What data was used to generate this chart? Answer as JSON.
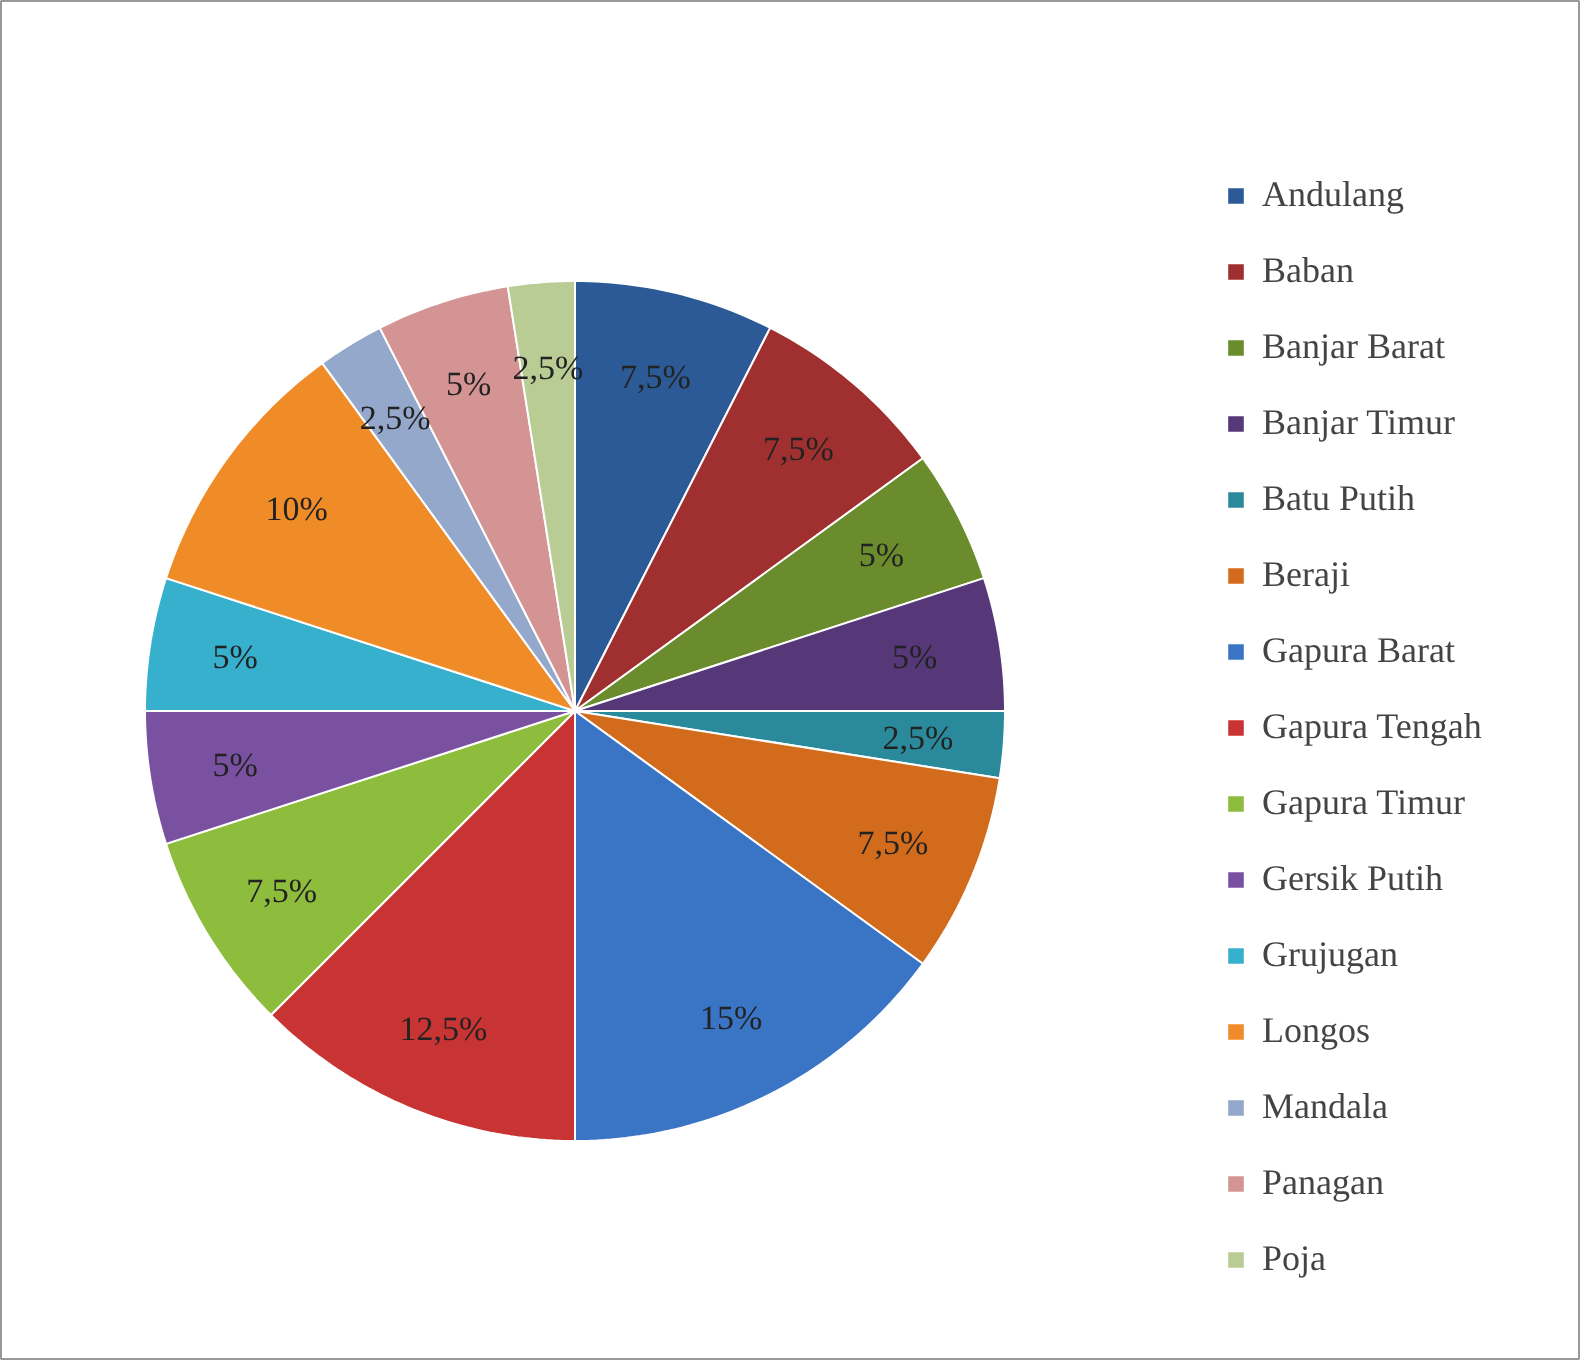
{
  "chart_data": {
    "type": "pie",
    "categories": [
      "Andulang",
      "Baban",
      "Banjar Barat",
      "Banjar Timur",
      "Batu Putih",
      "Beraji",
      "Gapura Barat",
      "Gapura Tengah",
      "Gapura Timur",
      "Gersik Putih",
      "Grujugan",
      "Longos",
      "Mandala",
      "Panagan",
      "Poja"
    ],
    "values": [
      7.5,
      7.5,
      5,
      5,
      2.5,
      7.5,
      15,
      12.5,
      7.5,
      5,
      5,
      10,
      2.5,
      5,
      2.5
    ],
    "value_labels": [
      "7,5%",
      "7,5%",
      "5%",
      "5%",
      "2,5%",
      "7,5%",
      "15%",
      "12,5%",
      "7,5%",
      "5%",
      "5%",
      "10%",
      "2,5%",
      "5%",
      "2,5%"
    ],
    "colors": [
      "#2c5a96",
      "#a03030",
      "#6a8c2c",
      "#563878",
      "#2a8a9c",
      "#d36b1c",
      "#3a74c4",
      "#c83434",
      "#8ebc3c",
      "#7a50a0",
      "#36b0cc",
      "#f08c28",
      "#94a8cc",
      "#d49494",
      "#b8cc94"
    ],
    "legend": "right"
  }
}
